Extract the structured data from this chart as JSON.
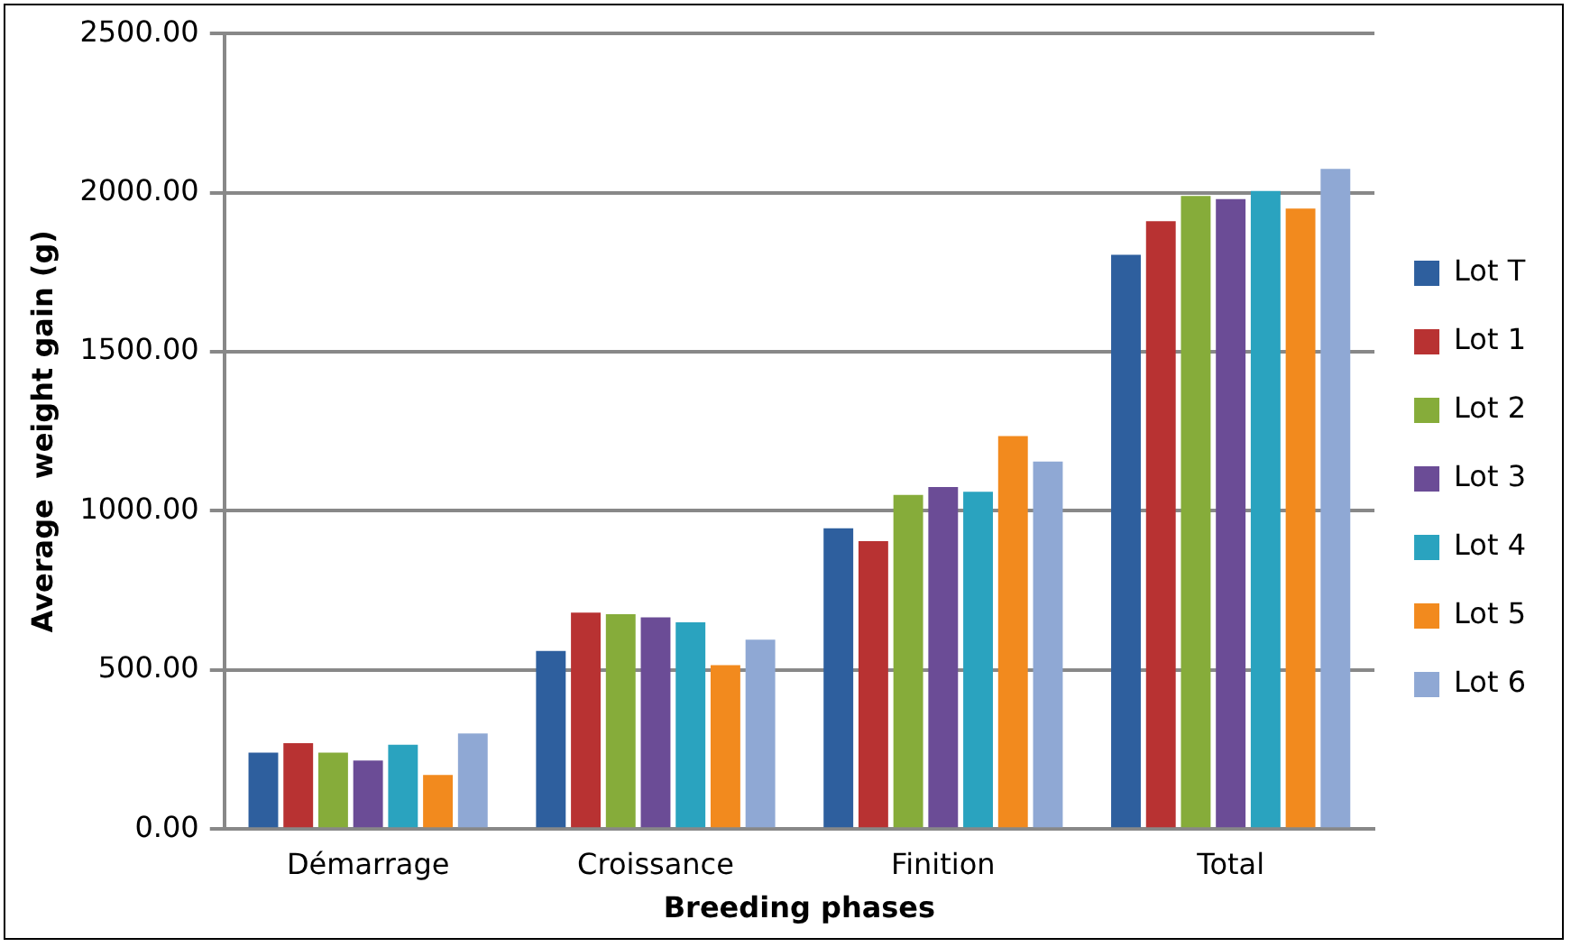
{
  "chart_data": {
    "type": "bar",
    "xlabel": "Breeding phases",
    "ylabel": "Average  weight gain (g)",
    "categories": [
      "Démarrage",
      "Croissance",
      "Finition",
      "Total"
    ],
    "series": [
      {
        "name": "Lot T",
        "color": "#2e5f9e",
        "values": [
          240,
          560,
          945,
          1805
        ]
      },
      {
        "name": "Lot 1",
        "color": "#b83232",
        "values": [
          270,
          680,
          905,
          1910
        ]
      },
      {
        "name": "Lot 2",
        "color": "#86ac3a",
        "values": [
          240,
          675,
          1050,
          1990
        ]
      },
      {
        "name": "Lot 3",
        "color": "#6b4c96",
        "values": [
          215,
          665,
          1075,
          1980
        ]
      },
      {
        "name": "Lot 4",
        "color": "#2aa3bf",
        "values": [
          265,
          650,
          1060,
          2005
        ]
      },
      {
        "name": "Lot 5",
        "color": "#f28a1e",
        "values": [
          170,
          515,
          1235,
          1950
        ]
      },
      {
        "name": "Lot 6",
        "color": "#8fa8d4",
        "values": [
          300,
          595,
          1155,
          2075
        ]
      }
    ],
    "ylim": [
      0,
      2500
    ],
    "yticks": [
      {
        "value": 0,
        "label": "0.00"
      },
      {
        "value": 500,
        "label": "500.00"
      },
      {
        "value": 1000,
        "label": "1000.00"
      },
      {
        "value": 1500,
        "label": "1500.00"
      },
      {
        "value": 2000,
        "label": "2000.00"
      },
      {
        "value": 2500,
        "label": "2500.00"
      }
    ],
    "grid": "y",
    "legend": "right"
  }
}
